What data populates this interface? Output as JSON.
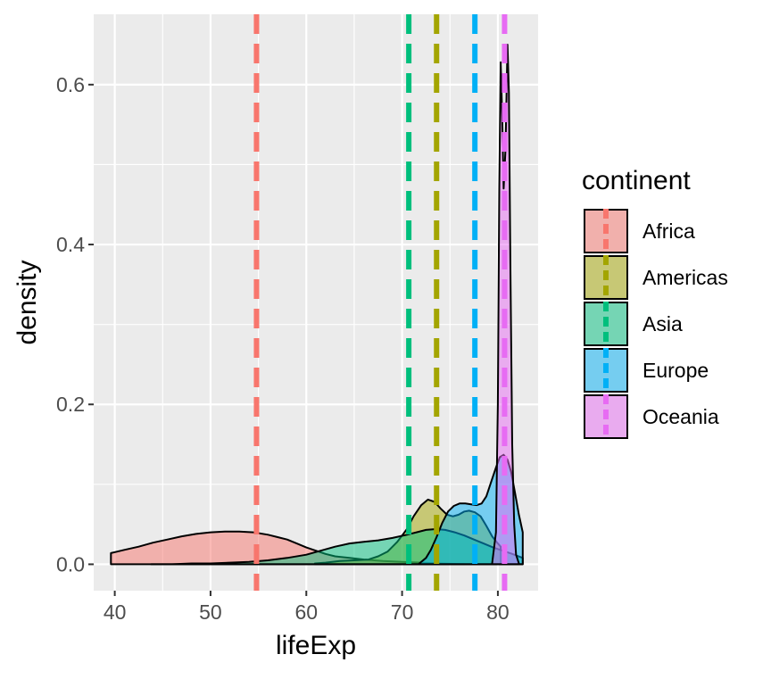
{
  "chart_data": {
    "type": "area",
    "xlabel": "lifeExp",
    "ylabel": "density",
    "xlim": [
      37.8,
      84.2
    ],
    "ylim": [
      -0.033,
      0.688
    ],
    "x_ticks": [
      40,
      50,
      60,
      70,
      80
    ],
    "y_ticks": [
      0.0,
      0.2,
      0.4,
      0.6
    ],
    "x_tick_labels": [
      "40",
      "50",
      "60",
      "70",
      "80"
    ],
    "y_tick_labels": [
      "0.0",
      "0.2",
      "0.4",
      "0.6"
    ],
    "grid": true,
    "legend": {
      "title": "continent",
      "position": "right",
      "entries": [
        "Africa",
        "Americas",
        "Asia",
        "Europe",
        "Oceania"
      ]
    },
    "colors": {
      "Africa": "#F8766D",
      "Americas": "#A3A500",
      "Asia": "#00BF7D",
      "Europe": "#00B0F6",
      "Oceania": "#E76BF3",
      "panel": "#EBEBEB",
      "grid": "#FFFFFF",
      "outline": "#000000"
    },
    "fill_opacity": 0.5,
    "series": [
      {
        "name": "Africa",
        "mean": 54.8,
        "points": [
          [
            39.6,
            0.014
          ],
          [
            41.0,
            0.018
          ],
          [
            42.5,
            0.022
          ],
          [
            44.0,
            0.027
          ],
          [
            45.5,
            0.031
          ],
          [
            47.0,
            0.035
          ],
          [
            48.5,
            0.038
          ],
          [
            50.0,
            0.04
          ],
          [
            51.5,
            0.041
          ],
          [
            53.0,
            0.041
          ],
          [
            54.5,
            0.04
          ],
          [
            56.0,
            0.037
          ],
          [
            57.0,
            0.034
          ],
          [
            58.0,
            0.031
          ],
          [
            59.0,
            0.026
          ],
          [
            60.0,
            0.021
          ],
          [
            61.0,
            0.017
          ],
          [
            62.0,
            0.013
          ],
          [
            63.0,
            0.01
          ],
          [
            64.5,
            0.008
          ],
          [
            66.0,
            0.006
          ],
          [
            68.0,
            0.004
          ],
          [
            70.0,
            0.003
          ],
          [
            72.0,
            0.002
          ],
          [
            74.0,
            0.001
          ],
          [
            76.5,
            0.0
          ]
        ]
      },
      {
        "name": "Americas",
        "mean": 73.6,
        "points": [
          [
            60.9,
            0.001
          ],
          [
            62.0,
            0.002
          ],
          [
            63.5,
            0.004
          ],
          [
            65.0,
            0.005
          ],
          [
            66.5,
            0.006
          ],
          [
            67.5,
            0.01
          ],
          [
            68.5,
            0.016
          ],
          [
            69.5,
            0.028
          ],
          [
            70.5,
            0.044
          ],
          [
            71.2,
            0.06
          ],
          [
            72.0,
            0.074
          ],
          [
            72.7,
            0.081
          ],
          [
            73.4,
            0.078
          ],
          [
            74.0,
            0.07
          ],
          [
            74.7,
            0.062
          ],
          [
            75.3,
            0.06
          ],
          [
            75.9,
            0.062
          ],
          [
            76.5,
            0.066
          ],
          [
            77.0,
            0.067
          ],
          [
            77.6,
            0.065
          ],
          [
            78.2,
            0.06
          ],
          [
            78.8,
            0.048
          ],
          [
            79.4,
            0.035
          ],
          [
            80.0,
            0.026
          ],
          [
            80.3,
            0.022
          ]
        ]
      },
      {
        "name": "Asia",
        "mean": 70.7,
        "points": [
          [
            43.8,
            0.0
          ],
          [
            46.0,
            0.0
          ],
          [
            48.0,
            0.001
          ],
          [
            50.0,
            0.001
          ],
          [
            52.0,
            0.002
          ],
          [
            54.0,
            0.003
          ],
          [
            56.0,
            0.005
          ],
          [
            58.0,
            0.008
          ],
          [
            60.0,
            0.012
          ],
          [
            61.5,
            0.017
          ],
          [
            63.0,
            0.022
          ],
          [
            64.5,
            0.026
          ],
          [
            66.0,
            0.028
          ],
          [
            67.5,
            0.03
          ],
          [
            69.0,
            0.033
          ],
          [
            70.5,
            0.037
          ],
          [
            71.5,
            0.04
          ],
          [
            72.5,
            0.043
          ],
          [
            73.5,
            0.044
          ],
          [
            74.5,
            0.043
          ],
          [
            75.5,
            0.04
          ],
          [
            76.5,
            0.036
          ],
          [
            77.5,
            0.031
          ],
          [
            78.5,
            0.026
          ],
          [
            79.5,
            0.021
          ],
          [
            80.5,
            0.017
          ],
          [
            81.5,
            0.013
          ],
          [
            82.6,
            0.008
          ]
        ]
      },
      {
        "name": "Europe",
        "mean": 77.6,
        "points": [
          [
            71.8,
            0.001
          ],
          [
            72.5,
            0.008
          ],
          [
            73.0,
            0.018
          ],
          [
            73.6,
            0.034
          ],
          [
            74.2,
            0.052
          ],
          [
            74.8,
            0.066
          ],
          [
            75.4,
            0.073
          ],
          [
            76.0,
            0.076
          ],
          [
            76.6,
            0.076
          ],
          [
            77.2,
            0.075
          ],
          [
            77.8,
            0.074
          ],
          [
            78.3,
            0.076
          ],
          [
            78.8,
            0.085
          ],
          [
            79.3,
            0.103
          ],
          [
            79.8,
            0.121
          ],
          [
            80.2,
            0.134
          ],
          [
            80.6,
            0.137
          ],
          [
            81.0,
            0.131
          ],
          [
            81.4,
            0.115
          ],
          [
            81.8,
            0.089
          ],
          [
            82.2,
            0.062
          ],
          [
            82.6,
            0.04
          ]
        ]
      },
      {
        "name": "Oceania",
        "mean": 80.7,
        "points": [
          [
            79.4,
            0.001
          ],
          [
            79.8,
            0.04
          ],
          [
            80.0,
            0.2
          ],
          [
            80.15,
            0.47
          ],
          [
            80.3,
            0.628
          ],
          [
            80.45,
            0.56
          ],
          [
            80.6,
            0.47
          ],
          [
            80.8,
            0.52
          ],
          [
            81.0,
            0.65
          ],
          [
            81.15,
            0.59
          ],
          [
            81.3,
            0.38
          ],
          [
            81.5,
            0.15
          ],
          [
            81.7,
            0.05
          ],
          [
            81.9,
            0.012
          ],
          [
            82.2,
            0.001
          ]
        ]
      }
    ]
  }
}
